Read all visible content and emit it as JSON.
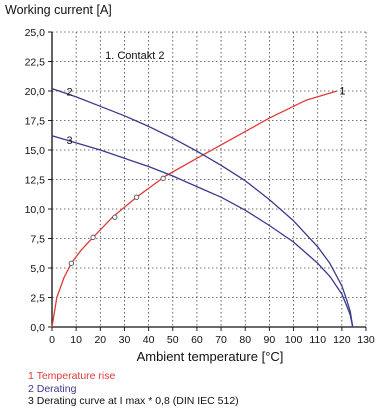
{
  "chart_data": {
    "type": "line",
    "ylabel": "Working current [A]",
    "xlabel": "Ambient temperature [°C]",
    "xlim": [
      0,
      130
    ],
    "ylim": [
      0,
      25
    ],
    "x_ticks": [
      "0",
      "10",
      "20",
      "30",
      "40",
      "50",
      "60",
      "70",
      "80",
      "90",
      "100",
      "110",
      "120",
      "130"
    ],
    "y_ticks": [
      "0,0",
      "2,5",
      "5,0",
      "7,5",
      "10,0",
      "12,5",
      "15,0",
      "17,5",
      "20,0",
      "22,5",
      "25,0"
    ],
    "grid": true,
    "annotation": "1. Contakt 2",
    "series": [
      {
        "name": "1",
        "label": "Temperature rise",
        "color": "#e03a3a",
        "x": [
          0,
          2,
          5,
          8,
          12,
          17,
          25,
          35,
          47,
          60,
          75,
          90,
          105,
          118
        ],
        "y": [
          0,
          2.5,
          4.2,
          5.4,
          6.5,
          7.6,
          9.3,
          11.0,
          12.8,
          14.3,
          16.0,
          17.7,
          19.2,
          20.0
        ],
        "markers": {
          "x": [
            8,
            17,
            26,
            35,
            46
          ],
          "y": [
            5.4,
            7.6,
            9.3,
            11.0,
            12.6
          ]
        }
      },
      {
        "name": "2",
        "label": "Derating",
        "color": "#3a3a8c",
        "x": [
          0,
          10,
          20,
          30,
          40,
          50,
          60,
          70,
          80,
          90,
          100,
          110,
          115,
          120,
          122,
          123.5,
          124.5
        ],
        "y": [
          20.2,
          19.5,
          18.7,
          17.9,
          17.0,
          16.0,
          14.9,
          13.7,
          12.4,
          10.8,
          9.0,
          6.8,
          5.4,
          3.5,
          2.3,
          1.3,
          0
        ]
      },
      {
        "name": "3",
        "label": "Derating curve at I max * 0,8 (DIN IEC 512)",
        "color": "#3a3a8c",
        "x": [
          0,
          10,
          20,
          30,
          40,
          50,
          60,
          70,
          80,
          90,
          100,
          110,
          115,
          120,
          122,
          123.5,
          124.5
        ],
        "y": [
          16.2,
          15.6,
          15.0,
          14.3,
          13.6,
          12.8,
          11.9,
          11.0,
          9.9,
          8.6,
          7.2,
          5.4,
          4.3,
          2.8,
          1.8,
          1.0,
          0
        ]
      }
    ],
    "legend": [
      {
        "text": "1 Temperature rise",
        "color": "#e03a3a"
      },
      {
        "text": "2 Derating",
        "color": "#3a3a8c"
      },
      {
        "text": "3 Derating curve at I max * 0,8 (DIN IEC 512)",
        "color": "#111111"
      }
    ]
  }
}
